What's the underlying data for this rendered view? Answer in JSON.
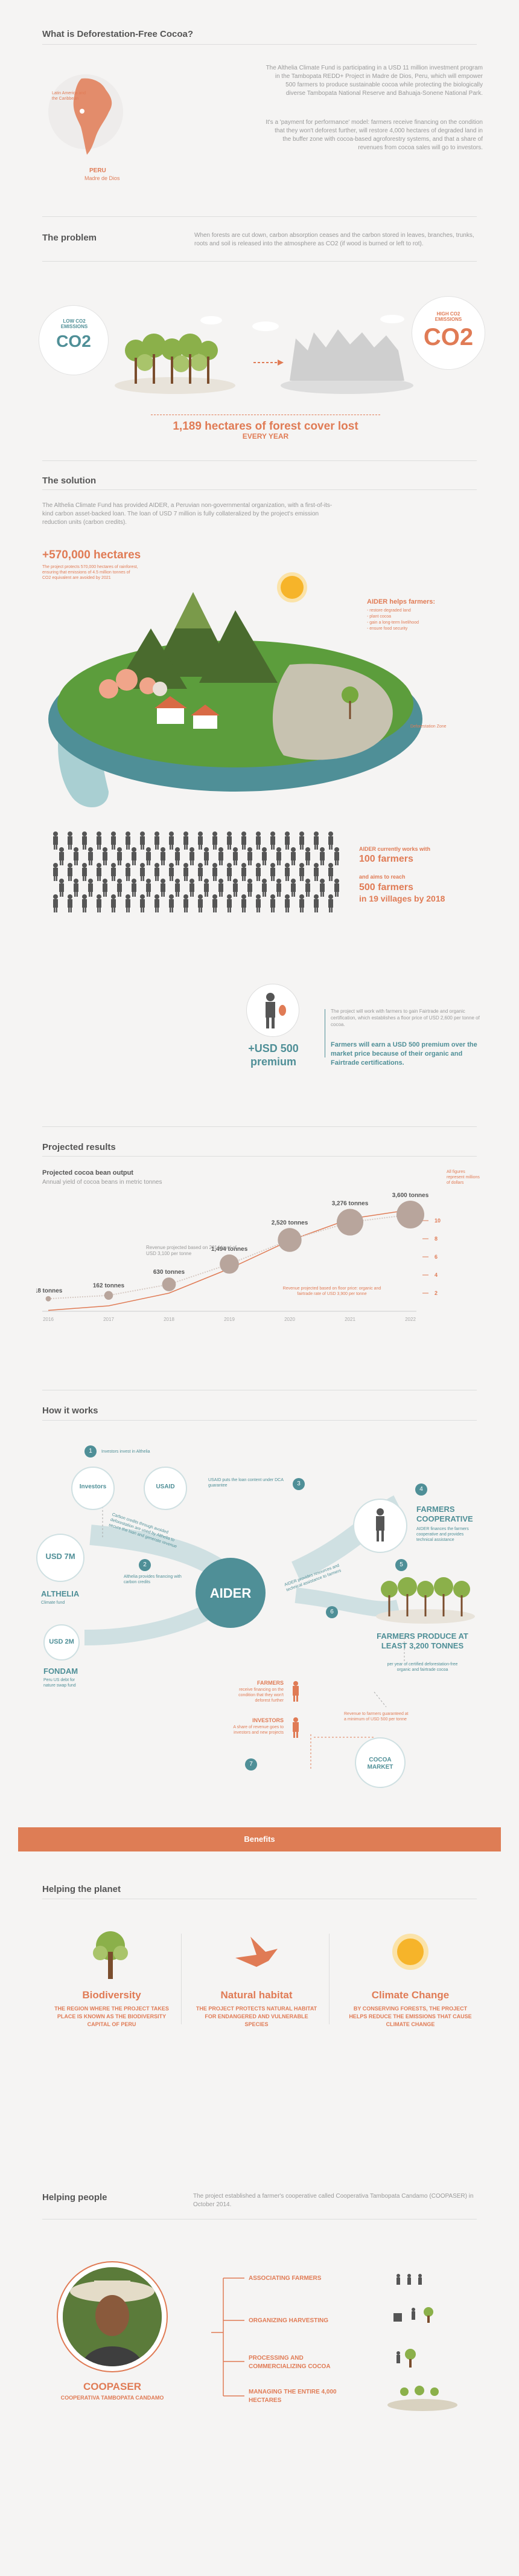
{
  "intro": {
    "title": "What is Deforestation-Free Cocoa?",
    "map_label": "Latin America and the Caribbean",
    "peru": "PERU",
    "madre_de_dios": "Madre de Dios",
    "para1": "The Althelia Climate Fund is participating in a USD 11 million investment program in the Tambopata REDD+ Project in Madre de Dios, Peru, which will empower 500 farmers to produce sustainable cocoa while protecting the biologically diverse Tambopata National Reserve and Bahuaja-Sonene National Park.",
    "para2": "It's a 'payment for performance' model: farmers receive financing on the condition that they won't deforest further, will restore 4,000 hectares of degraded land in the buffer zone with cocoa-based agroforestry systems, and that a share of revenues from cocoa sales will go to investors."
  },
  "problem": {
    "title": "The problem",
    "text": "When forests are cut down, carbon absorption ceases and the carbon stored in leaves, branches, trunks, roots and soil is released into the atmosphere as CO2 (if wood is burned or left to rot).",
    "low_label": "LOW CO2 EMISSIONS",
    "high_label": "HIGH CO2 EMISSIONS",
    "co2": "CO2",
    "headline": "1,189 hectares of forest cover lost",
    "sub": "EVERY YEAR"
  },
  "solution": {
    "title": "The solution",
    "text": "The Althelia Climate Fund has provided AIDER, a Peruvian non-governmental organization, with a first-of-its-kind carbon asset-backed loan. The loan of USD 7 million is fully collateralized by the project's emission reduction units (carbon credits).",
    "hectares": "+570,000 hectares",
    "hectares_sub": "The project protects 570,000 hectares of rainforest, ensuring that emissions of 4.5 million tonnes of CO2 equivalent are avoided by 2021",
    "aider_helps": "AIDER helps farmers:",
    "helps_list": [
      "- restore degraded land",
      "- plant cocoa",
      "- gain a long-term livelihood",
      "- ensure food security"
    ],
    "deforestation_zone": "Deforestation Zone",
    "aider_works": "AIDER currently works with",
    "farmers100": "100 farmers",
    "aims": "and aims to reach",
    "farmers500": "500 farmers",
    "villages": "in 19 villages by 2018",
    "premium_small": "The project will work with farmers to gain Fairtrade and organic certification, which establishes a floor price of USD 2,600 per tonne of cocoa.",
    "premium_amount": "+USD 500 premium",
    "premium_text": "Farmers will earn a USD 500 premium over the market price because of their organic and Fairtrade certifications."
  },
  "projected": {
    "title": "Projected results",
    "chart_title": "Projected cocoa bean output",
    "chart_subtitle": "Annual yield of cocoa beans in metric tonnes",
    "note1": "Revenue projected based on 2014 level of USD 3,100 per tonne",
    "note2": "Revenue projected based on floor price: organic and fairtrade rate of USD 3,900 per tonne",
    "axis_right_title": "All figures represent millions of dollars"
  },
  "chart_data": {
    "type": "line",
    "title": "Projected cocoa bean output",
    "subtitle": "Annual yield of cocoa beans in metric tonnes",
    "x": [
      "2016",
      "2017",
      "2018",
      "2019",
      "2020",
      "2021",
      "2022"
    ],
    "series": [
      {
        "name": "Cocoa output (tonnes)",
        "values": [
          18,
          162,
          630,
          1494,
          2520,
          3276,
          3600
        ]
      },
      {
        "name": "Revenue (millions USD)",
        "values": [
          0.1,
          0.6,
          2.0,
          4.7,
          7.8,
          10.2,
          11.2
        ]
      }
    ],
    "labels": [
      "18 tonnes",
      "162 tonnes",
      "630 tonnes",
      "1,494 tonnes",
      "2,520 tonnes",
      "3,276 tonnes",
      "3,600 tonnes"
    ],
    "right_ticks": [
      "2",
      "4",
      "6",
      "8",
      "10"
    ],
    "right_tick_values": [
      2,
      4,
      6,
      8,
      10
    ],
    "ylim": [
      0,
      12
    ]
  },
  "how": {
    "title": "How it works",
    "step1": "Investors invest in Althelia",
    "investors": "Investors",
    "usaid": "USAID",
    "usaid_text": "USAID puts the loan content under DCA guarantee",
    "usd7m": "USD 7M",
    "althelia": "ALTHELIA",
    "althelia_sub": "Climate fund",
    "aider": "AIDER",
    "althelia_arrow": "Althelia provides financing with carbon credits",
    "carbon_credits": "Carbon credits through avoided deforestation are used by Althelia to secure the loan and generate revenue",
    "usd2m": "USD 2M",
    "fondam": "FONDAM",
    "fondam_sub": "Peru US debt for nature swap fund",
    "coop_title": "FARMERS COOPERATIVE",
    "coop_text": "AIDER finances the farmers cooperative and provides technical assistance",
    "aider_to_farmers": "AIDER provides resources and technical assistance to farmers",
    "produce_title": "FARMERS PRODUCE AT LEAST 3,200 TONNES",
    "produce_text": "per year of certified deforestation-free organic and fairtrade cocoa",
    "farmers": "FARMERS",
    "farmers_text": "receive financing on the condition that they won't deforest further",
    "investors_cap": "INVESTORS",
    "investors_text": "A share of revenue goes to investors and new projects",
    "revenue_text": "Revenue to farmers guaranteed at a minimum of USD 500 per tonne",
    "market": "COCOA MARKET",
    "n": [
      "1",
      "2",
      "3",
      "4",
      "5",
      "6",
      "7"
    ]
  },
  "benefits": {
    "banner": "Benefits"
  },
  "planet": {
    "title": "Helping the planet",
    "items": [
      {
        "title": "Biodiversity",
        "text": "THE REGION WHERE THE PROJECT TAKES PLACE IS KNOWN AS THE BIODIVERSITY CAPITAL OF PERU"
      },
      {
        "title": "Natural habitat",
        "text": "THE PROJECT PROTECTS NATURAL HABITAT FOR ENDANGERED AND VULNERABLE SPECIES"
      },
      {
        "title": "Climate Change",
        "text": "BY CONSERVING FORESTS, THE PROJECT HELPS REDUCE THE EMISSIONS THAT CAUSE CLIMATE CHANGE"
      }
    ]
  },
  "people": {
    "title": "Helping people",
    "text": "The project established a farmer's cooperative called Cooperativa Tambopata Candamo (COOPASER) in October 2014.",
    "coop": "COOPASER",
    "coop_sub": "COOPERATIVA TAMBOPATA CANDAMO",
    "items": [
      "ASSOCIATING FARMERS",
      "ORGANIZING HARVESTING",
      "PROCESSING AND COMMERCIALIZING COCOA",
      "MANAGING THE ENTIRE 4,000 HECTARES"
    ]
  },
  "colors": {
    "orange": "#e07b55",
    "teal": "#4f8f97",
    "green": "#6b9a3e",
    "banner": "#de7d55"
  }
}
